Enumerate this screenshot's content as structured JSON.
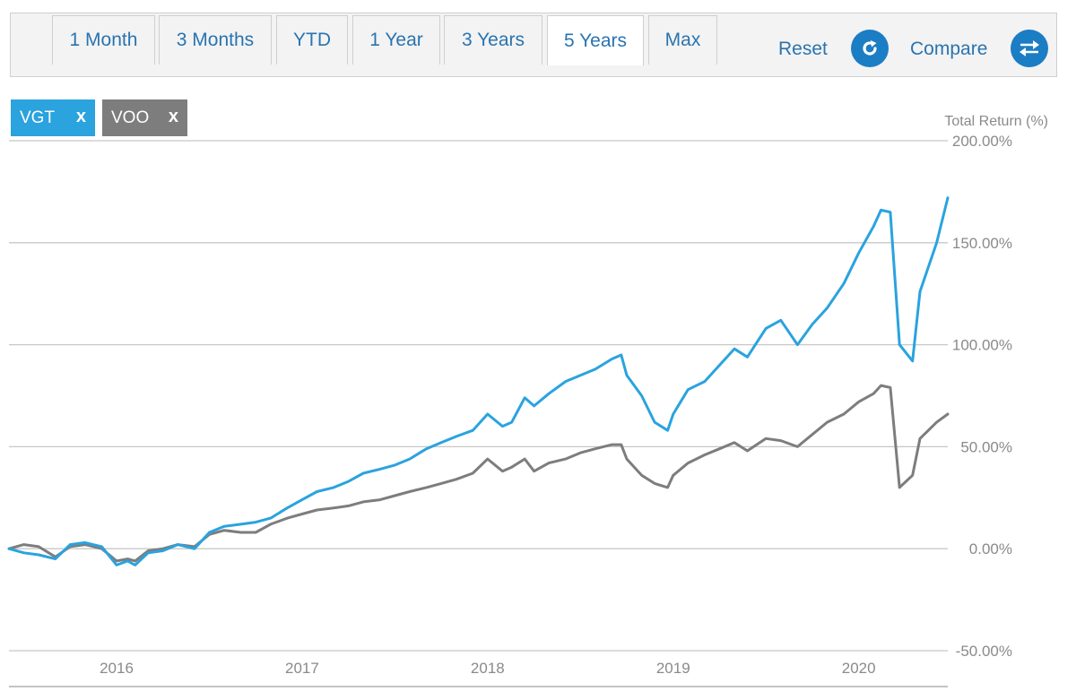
{
  "tabs": [
    {
      "label": "1 Month",
      "active": false
    },
    {
      "label": "3 Months",
      "active": false
    },
    {
      "label": "YTD",
      "active": false
    },
    {
      "label": "1 Year",
      "active": false
    },
    {
      "label": "3 Years",
      "active": false
    },
    {
      "label": "5 Years",
      "active": true
    },
    {
      "label": "Max",
      "active": false
    }
  ],
  "toolbar": {
    "reset_label": "Reset",
    "compare_label": "Compare"
  },
  "chips": [
    {
      "label": "VGT",
      "close": "x",
      "color": "#2aa3de"
    },
    {
      "label": "VOO",
      "close": "x",
      "color": "#7d7d7e"
    }
  ],
  "chart_data": {
    "type": "line",
    "ylabel": "Total Return (%)",
    "ylim": [
      -50,
      200
    ],
    "yticks": [
      {
        "value": 200,
        "label": "200.00%"
      },
      {
        "value": 150,
        "label": "150.00%"
      },
      {
        "value": 100,
        "label": "100.00%"
      },
      {
        "value": 50,
        "label": "50.00%"
      },
      {
        "value": 0,
        "label": "0.00%"
      },
      {
        "value": -50,
        "label": "-50.00%"
      }
    ],
    "xlim": [
      2015.42,
      2020.48
    ],
    "xticks": [
      {
        "value": 2016.0,
        "label": "2016"
      },
      {
        "value": 2017.0,
        "label": "2017"
      },
      {
        "value": 2018.0,
        "label": "2018"
      },
      {
        "value": 2019.0,
        "label": "2019"
      },
      {
        "value": 2020.0,
        "label": "2020"
      }
    ],
    "series": [
      {
        "name": "VGT",
        "color": "#2aa3de",
        "x": [
          2015.42,
          2015.5,
          2015.58,
          2015.67,
          2015.75,
          2015.83,
          2015.92,
          2016.0,
          2016.06,
          2016.1,
          2016.17,
          2016.25,
          2016.33,
          2016.42,
          2016.5,
          2016.58,
          2016.67,
          2016.75,
          2016.83,
          2016.92,
          2017.0,
          2017.08,
          2017.17,
          2017.25,
          2017.33,
          2017.42,
          2017.5,
          2017.58,
          2017.67,
          2017.75,
          2017.83,
          2017.92,
          2018.0,
          2018.08,
          2018.13,
          2018.2,
          2018.25,
          2018.33,
          2018.42,
          2018.5,
          2018.58,
          2018.67,
          2018.72,
          2018.75,
          2018.83,
          2018.9,
          2018.97,
          2019.0,
          2019.08,
          2019.17,
          2019.25,
          2019.33,
          2019.4,
          2019.5,
          2019.58,
          2019.67,
          2019.75,
          2019.83,
          2019.92,
          2020.0,
          2020.08,
          2020.12,
          2020.17,
          2020.22,
          2020.29,
          2020.33,
          2020.42,
          2020.48
        ],
        "values": [
          0,
          -2,
          -3,
          -5,
          2,
          3,
          1,
          -8,
          -6,
          -8,
          -2,
          -1,
          2,
          0,
          8,
          11,
          12,
          13,
          15,
          20,
          24,
          28,
          30,
          33,
          37,
          39,
          41,
          44,
          49,
          52,
          55,
          58,
          66,
          60,
          62,
          74,
          70,
          76,
          82,
          85,
          88,
          93,
          95,
          85,
          75,
          62,
          58,
          66,
          78,
          82,
          90,
          98,
          94,
          108,
          112,
          100,
          110,
          118,
          130,
          145,
          158,
          166,
          165,
          100,
          92,
          126,
          150,
          172
        ]
      },
      {
        "name": "VOO",
        "color": "#7d7d7e",
        "x": [
          2015.42,
          2015.5,
          2015.58,
          2015.67,
          2015.75,
          2015.83,
          2015.92,
          2016.0,
          2016.06,
          2016.1,
          2016.17,
          2016.25,
          2016.33,
          2016.42,
          2016.5,
          2016.58,
          2016.67,
          2016.75,
          2016.83,
          2016.92,
          2017.0,
          2017.08,
          2017.17,
          2017.25,
          2017.33,
          2017.42,
          2017.5,
          2017.58,
          2017.67,
          2017.75,
          2017.83,
          2017.92,
          2018.0,
          2018.08,
          2018.13,
          2018.2,
          2018.25,
          2018.33,
          2018.42,
          2018.5,
          2018.58,
          2018.67,
          2018.72,
          2018.75,
          2018.83,
          2018.9,
          2018.97,
          2019.0,
          2019.08,
          2019.17,
          2019.25,
          2019.33,
          2019.4,
          2019.5,
          2019.58,
          2019.67,
          2019.75,
          2019.83,
          2019.92,
          2020.0,
          2020.08,
          2020.12,
          2020.17,
          2020.22,
          2020.29,
          2020.33,
          2020.42,
          2020.48
        ],
        "values": [
          0,
          2,
          1,
          -4,
          1,
          2,
          0,
          -6,
          -5,
          -6,
          -1,
          0,
          2,
          1,
          7,
          9,
          8,
          8,
          12,
          15,
          17,
          19,
          20,
          21,
          23,
          24,
          26,
          28,
          30,
          32,
          34,
          37,
          44,
          38,
          40,
          44,
          38,
          42,
          44,
          47,
          49,
          51,
          51,
          44,
          36,
          32,
          30,
          36,
          42,
          46,
          49,
          52,
          48,
          54,
          53,
          50,
          56,
          62,
          66,
          72,
          76,
          80,
          79,
          30,
          36,
          54,
          62,
          66
        ]
      }
    ]
  }
}
